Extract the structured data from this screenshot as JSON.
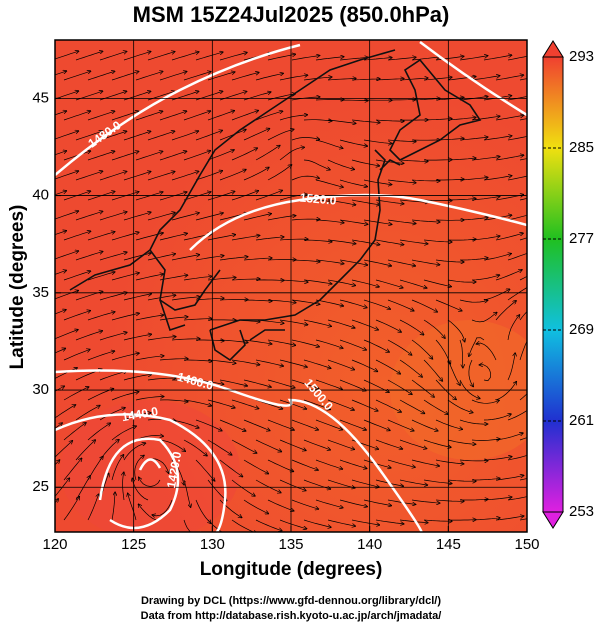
{
  "title": "MSM 15Z24Jul2025 (850.0hPa)",
  "map": {
    "type": "map",
    "xlabel": "Longitude (degrees)",
    "ylabel": "Latitude  (degrees)",
    "xlim": [
      120,
      150
    ],
    "ylim": [
      22.7,
      48
    ],
    "xticks": [
      120,
      125,
      130,
      135,
      140,
      145,
      150
    ],
    "yticks": [
      25,
      30,
      35,
      40,
      45
    ],
    "grid": true,
    "colorbar": {
      "lim": [
        253,
        293
      ],
      "ticks": [
        253,
        261,
        269,
        277,
        285,
        293
      ],
      "colors": [
        "#e020e0",
        "#2030d0",
        "#10c0e0",
        "#20c020",
        "#f0e010",
        "#f04030"
      ]
    },
    "contour_labels": [
      "1480.0",
      "1520.0",
      "1460.0",
      "1440.0",
      "1500.0",
      "1420.0"
    ]
  },
  "footer": [
    "Drawing by DCL (https://www.gfd-dennou.org/library/dcl/)",
    "Data from http://database.rish.kyoto-u.ac.jp/arch/jmadata/"
  ]
}
